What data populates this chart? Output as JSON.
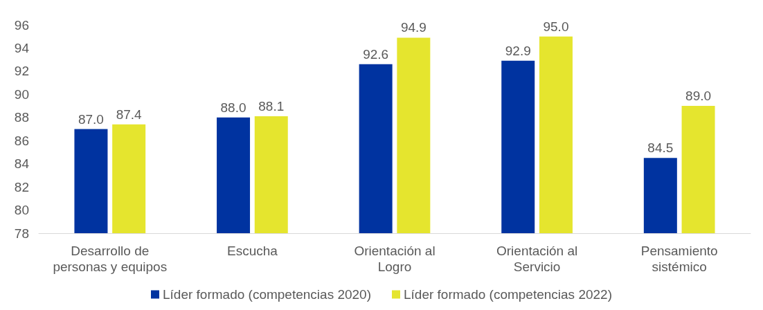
{
  "chart_data": {
    "type": "bar",
    "categories": [
      "Desarrollo de\npersonas y equipos",
      "Escucha",
      "Orientación al\nLogro",
      "Orientación al\nServicio",
      "Pensamiento\nsistémico"
    ],
    "series": [
      {
        "name": "Líder formado (competencias 2020)",
        "color": "#0033a0",
        "values": [
          87.0,
          88.0,
          92.6,
          92.9,
          84.5
        ],
        "value_labels": [
          "87.0",
          "88.0",
          "92.6",
          "92.9",
          "84.5"
        ]
      },
      {
        "name": "Líder formado (competencias 2022)",
        "color": "#e5e52e",
        "values": [
          87.4,
          88.1,
          94.9,
          95.0,
          89.0
        ],
        "value_labels": [
          "87.4",
          "88.1",
          "94.9",
          "95.0",
          "89.0"
        ]
      }
    ],
    "ylim": [
      78,
      96
    ],
    "yticks": [
      78,
      80,
      82,
      84,
      86,
      88,
      90,
      92,
      94,
      96
    ],
    "grid": false,
    "legend": "bottom"
  }
}
